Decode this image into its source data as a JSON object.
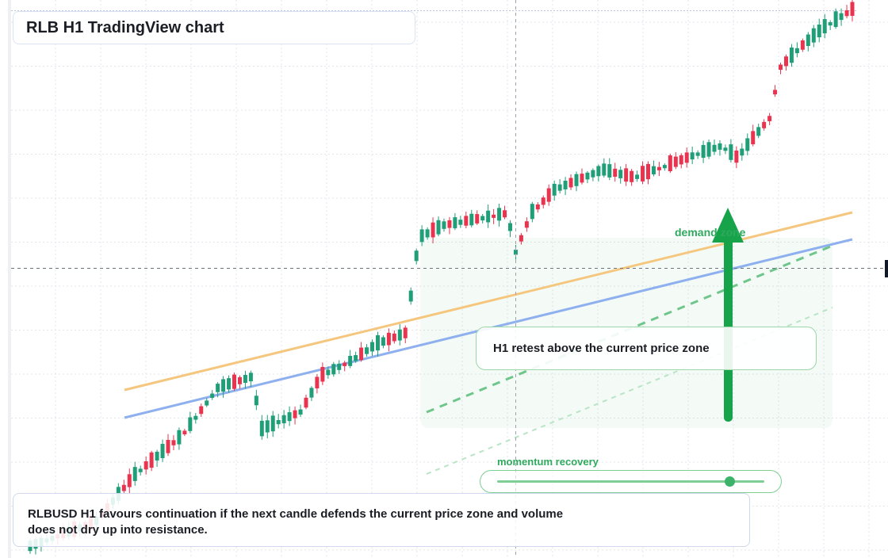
{
  "title": "RLB H1 TradingView chart",
  "zone_label": "demand zone",
  "callout": "H1 retest above the current price zone",
  "momentum": {
    "label": "momentum recovery",
    "level": 0.87
  },
  "note": "RLBUSD H1 favours continuation if the next candle defends the current price zone and volume does not dry up into resistance.",
  "colors": {
    "bull": "#1f9e78",
    "bear": "#e8344e",
    "resistance": "#f5c77e",
    "support": "#8fb0ee",
    "zone_green": "#2fa95d",
    "grid": "#e3e6ec"
  },
  "chart_data": {
    "type": "candlestick",
    "symbol": "RLBUSD",
    "timeframe": "H1",
    "ylim": [
      0,
      100
    ],
    "candles_count": 150,
    "demand_zone": [
      42,
      72
    ],
    "crosshair_value": 67
  }
}
